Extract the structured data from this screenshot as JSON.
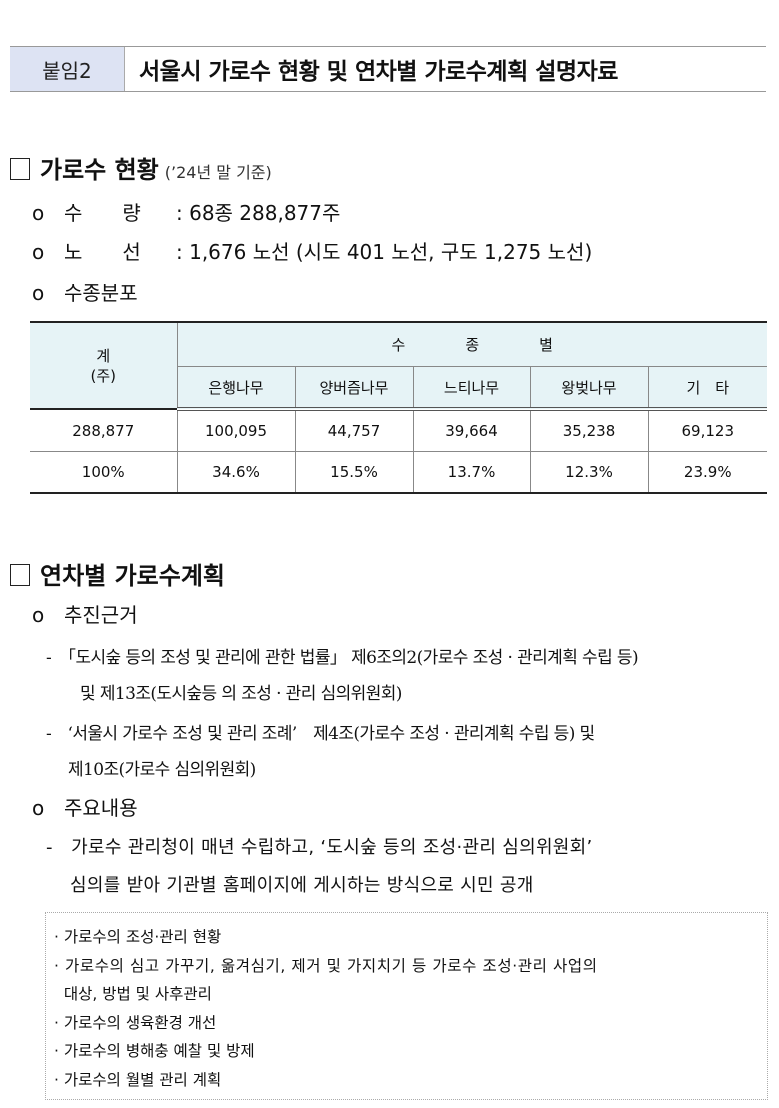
{
  "header": {
    "tag": "붙임2",
    "title": "서울시 가로수 현황 및 연차별 가로수계획 설명자료"
  },
  "section1": {
    "heading": "가로수 현황",
    "note": "(’24년 말 기준)",
    "items": [
      {
        "bullet": "o",
        "label": "수　　량",
        "value": ": 68종 288,877주"
      },
      {
        "bullet": "o",
        "label": "노　　선",
        "value": ": 1,676 노선 (시도 401 노선, 구도 1,275 노선)"
      },
      {
        "bullet": "o",
        "label": "수종분포",
        "value": ""
      }
    ],
    "table": {
      "total_header": "계\n(주)",
      "group_header": "수　　　　종　　　　별",
      "columns": [
        "은행나무",
        "양버즘나무",
        "느티나무",
        "왕벚나무",
        "기　타"
      ],
      "rows": [
        [
          "288,877",
          "100,095",
          "44,757",
          "39,664",
          "35,238",
          "69,123"
        ],
        [
          "100%",
          "34.6%",
          "15.5%",
          "13.7%",
          "12.3%",
          "23.9%"
        ]
      ]
    }
  },
  "section2": {
    "heading": "연차별 가로수계획",
    "basis_label": "추진근거",
    "basis_lines": [
      "-　「도시숲 등의 조성 및 관리에 관한 법률」 제6조의2(가로수 조성 · 관리계획 수립 등)",
      "및 제13조(도시숲등 의 조성 · 관리 심의위원회)",
      "-　‘서울시 가로수 조성 및 관리 조례’　제4조(가로수 조성 · 관리계획 수립 등) 및",
      "제10조(가로수 심의위원회)"
    ],
    "main_label": "주요내용",
    "main_lines": [
      "-　가로수 관리청이 매년 수립하고, ‘도시숲 등의 조성·관리 심의위원회’",
      "심의를 받아 기관별 홈페이지에 게시하는 방식으로 시민 공개"
    ],
    "box_lines": [
      "· 가로수의 조성·관리 현황",
      "· 가로수의 심고 가꾸기, 옮겨심기, 제거 및 가지치기 등 가로수 조성·관리 사업의",
      "  대상, 방법 및 사후관리",
      "· 가로수의 생육환경 개선",
      "· 가로수의 병해충 예찰 및 방제",
      "· 가로수의 월별 관리 계획"
    ]
  }
}
